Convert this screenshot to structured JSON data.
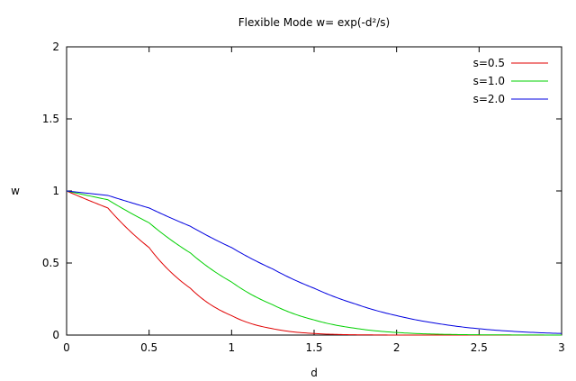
{
  "chart_data": {
    "type": "line",
    "title": "Flexible Mode w= exp(-d²/s)",
    "xlabel": "d",
    "ylabel": "w",
    "xlim": [
      0,
      3
    ],
    "ylim": [
      0,
      2
    ],
    "xticks": [
      "0",
      "0.5",
      "1",
      "1.5",
      "2",
      "2.5",
      "3"
    ],
    "yticks": [
      "0",
      "0.5",
      "1",
      "1.5",
      "2"
    ],
    "xtick_values": [
      0,
      0.5,
      1,
      1.5,
      2,
      2.5,
      3
    ],
    "ytick_values": [
      0,
      0.5,
      1,
      1.5,
      2
    ],
    "grid": false,
    "legend_position": "top-right",
    "x": [
      0,
      0.25,
      0.5,
      0.75,
      1.0,
      1.25,
      1.5,
      1.75,
      2.0,
      2.25,
      2.5,
      2.75,
      3.0
    ],
    "series": [
      {
        "name": "s=0.5",
        "color": "#e00000",
        "values": [
          1.0,
          0.882,
          0.607,
          0.325,
          0.135,
          0.044,
          0.011,
          0.002,
          0.0,
          0.0,
          0.0,
          0.0,
          0.0
        ]
      },
      {
        "name": "s=1.0",
        "color": "#00d000",
        "values": [
          1.0,
          0.939,
          0.779,
          0.57,
          0.368,
          0.21,
          0.105,
          0.047,
          0.018,
          0.006,
          0.002,
          0.001,
          0.0
        ]
      },
      {
        "name": "s=2.0",
        "color": "#0000e0",
        "values": [
          1.0,
          0.969,
          0.882,
          0.755,
          0.607,
          0.458,
          0.325,
          0.216,
          0.135,
          0.08,
          0.044,
          0.023,
          0.011
        ]
      }
    ]
  }
}
